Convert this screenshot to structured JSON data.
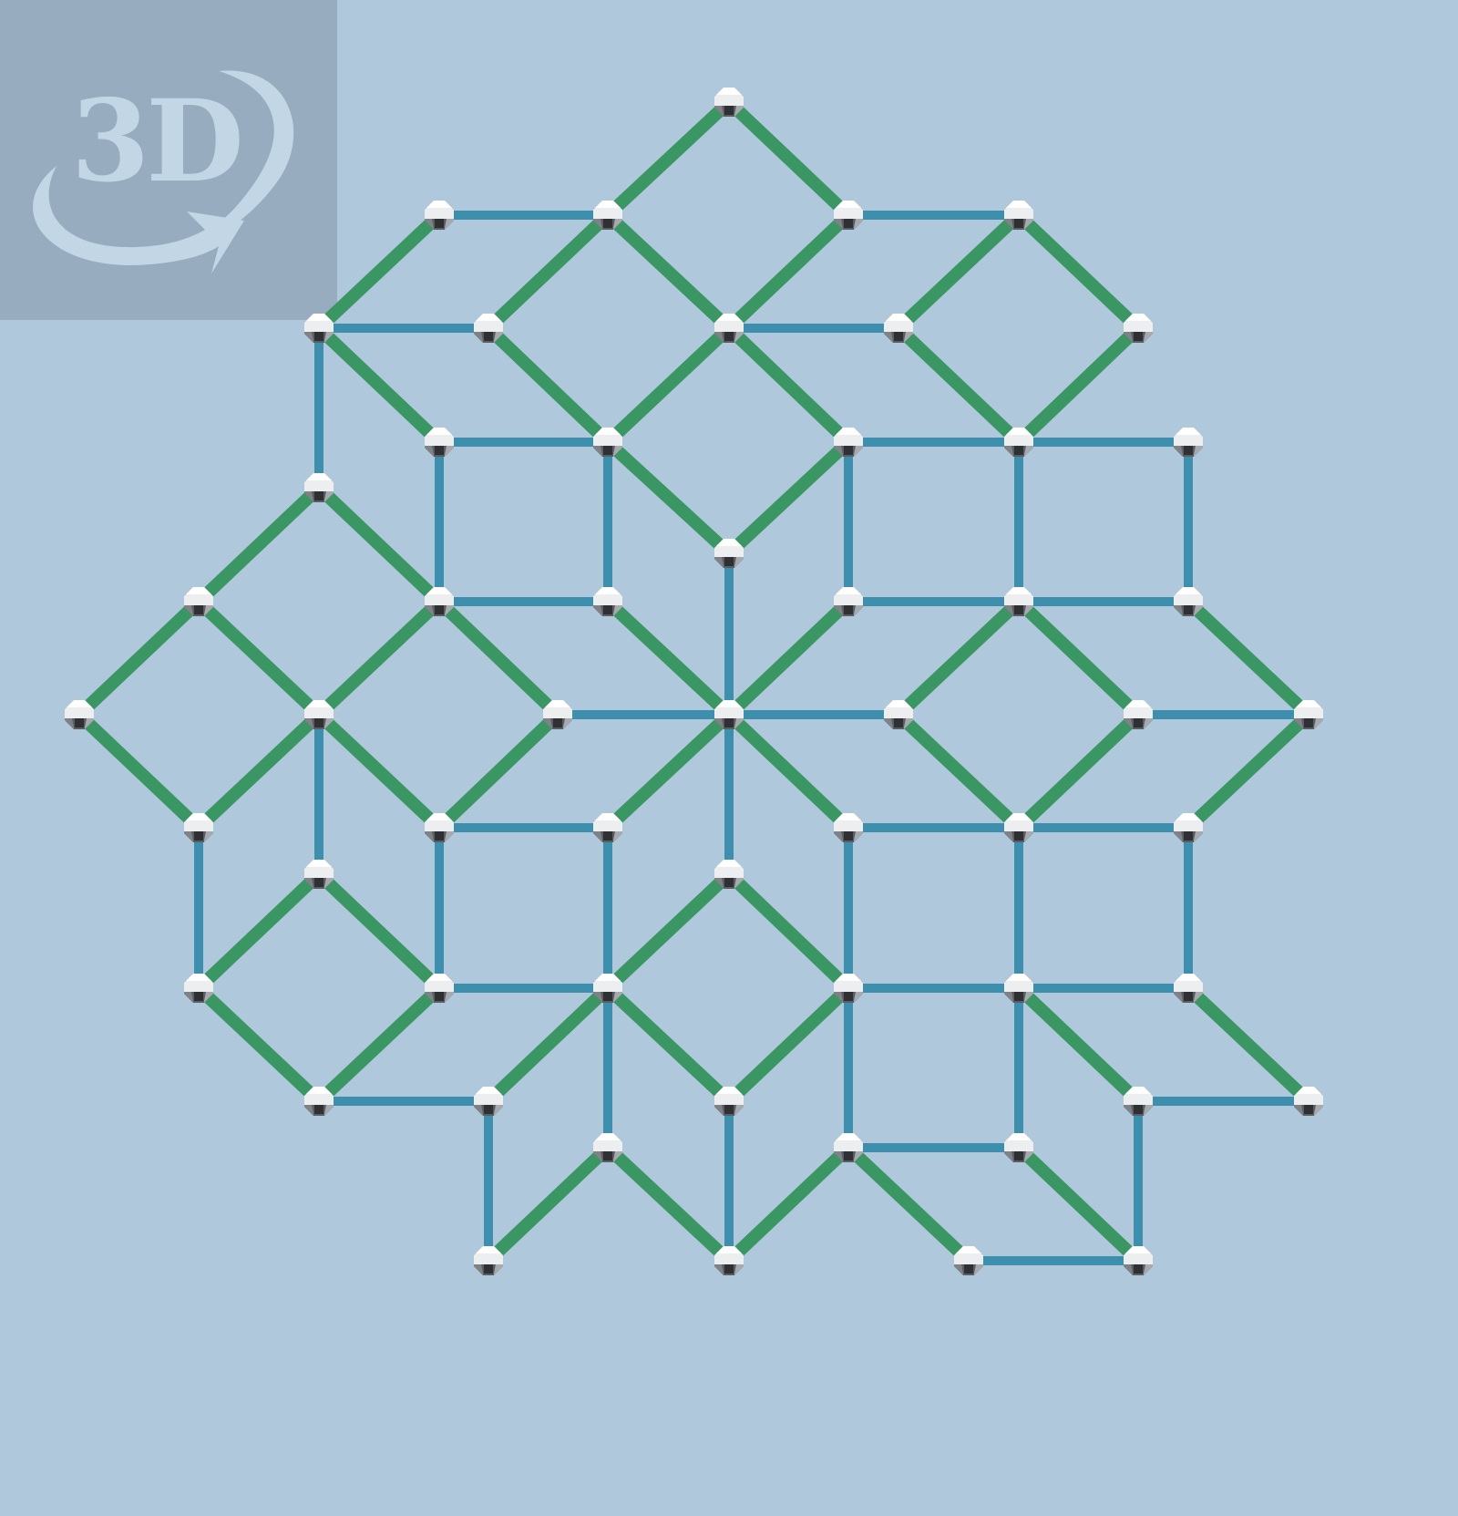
{
  "badge": {
    "text": "3D",
    "icon": "rotate-3d-icon"
  },
  "colors": {
    "background": "#b0c8dc",
    "badge_background": "#97acbf",
    "badge_foreground": "#c3d6e6",
    "edge_green": "#3a9662",
    "edge_blue": "#3e8fae"
  }
}
